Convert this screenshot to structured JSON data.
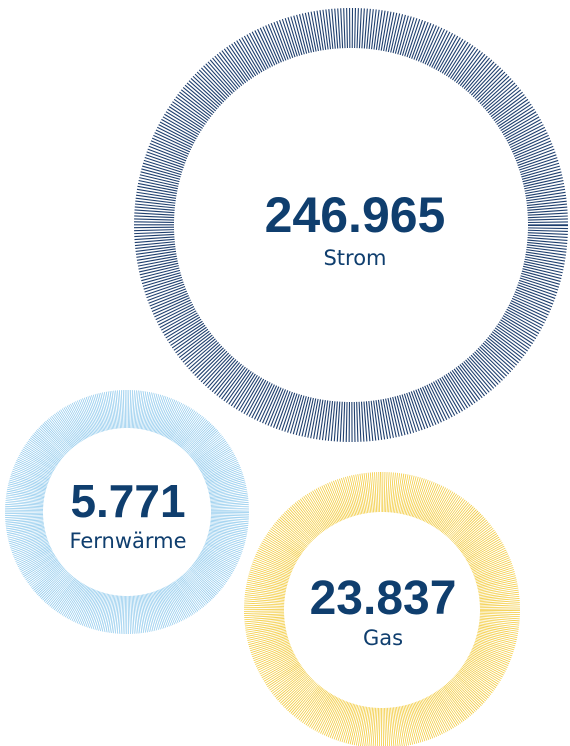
{
  "items": [
    {
      "value": "246.965",
      "label": "Strom"
    },
    {
      "value": "5.771",
      "label": "Fernwärme"
    },
    {
      "value": "23.837",
      "label": "Gas"
    }
  ]
}
